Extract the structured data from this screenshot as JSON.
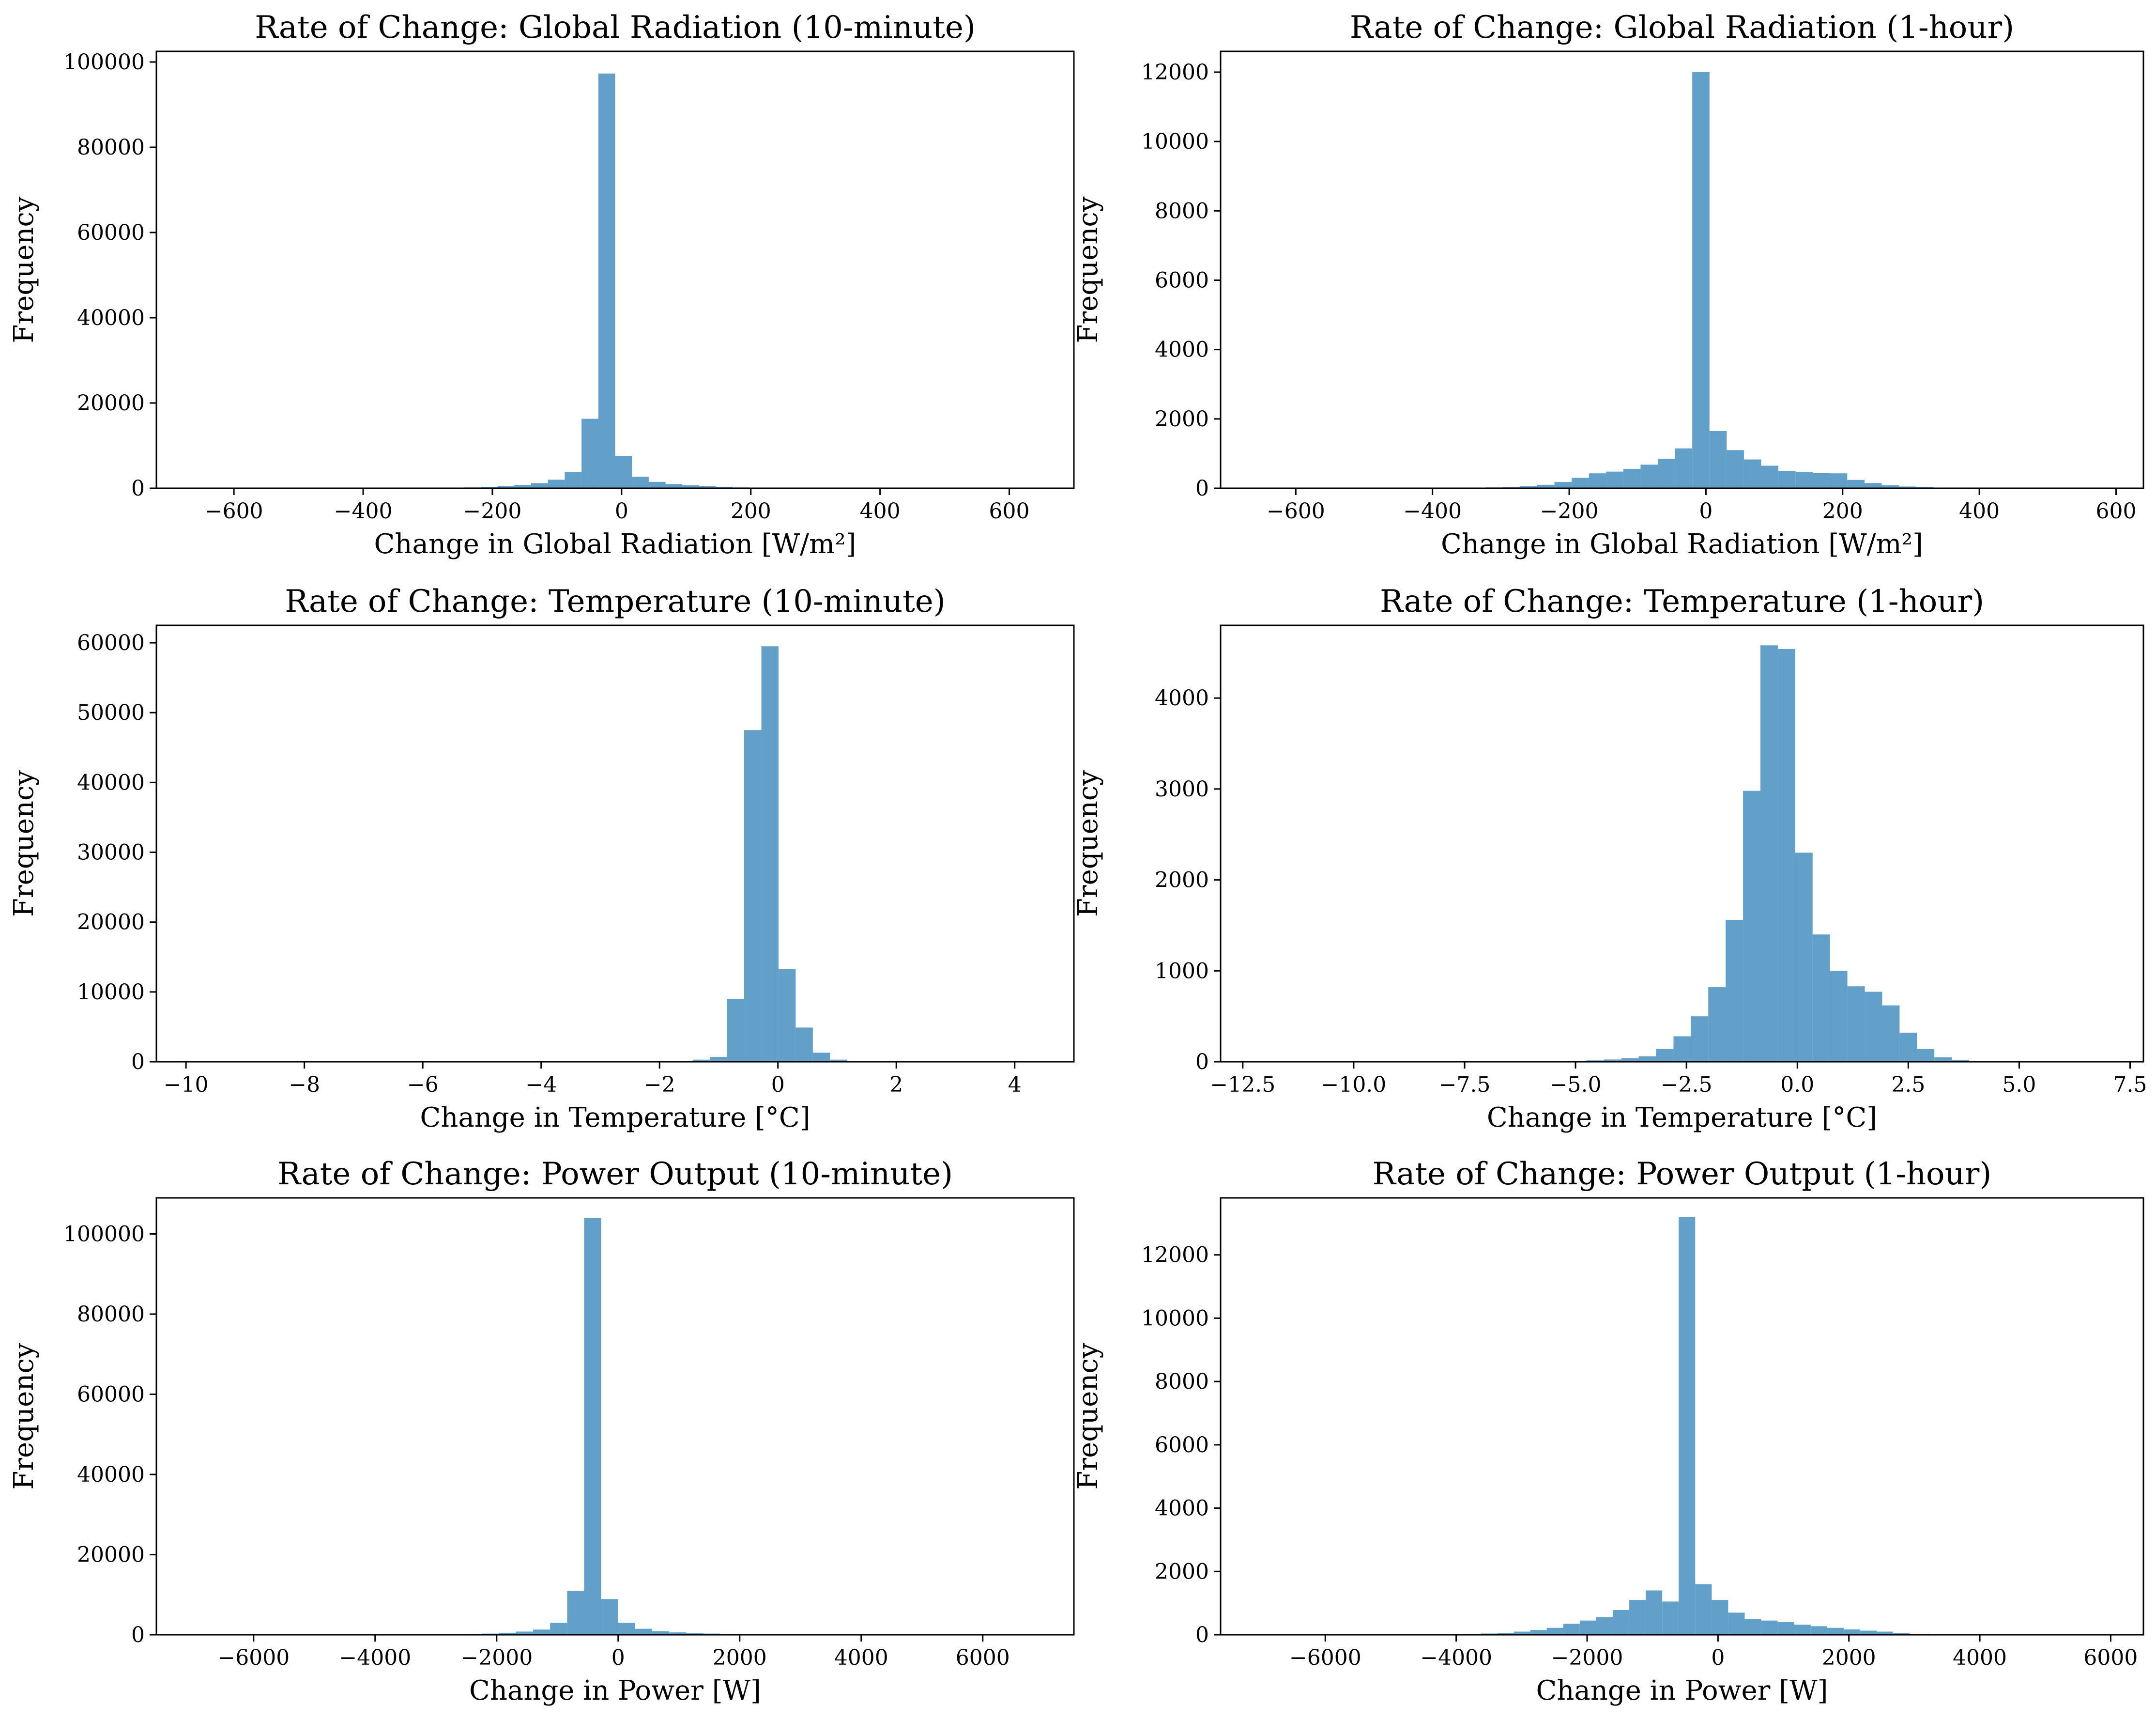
{
  "style": {
    "bar_color": "#1f77b4",
    "bar_opacity": 0.7,
    "background": "#ffffff"
  },
  "chart_data": [
    {
      "type": "bar",
      "title": "Rate of Change: Global Radiation (10-minute)",
      "xlabel": "Change in Global Radiation [W/m²]",
      "ylabel": "Frequency",
      "xlim": [
        -720,
        700
      ],
      "ylim": [
        0,
        102500
      ],
      "xticks": [
        -600,
        -400,
        -200,
        0,
        200,
        400,
        600
      ],
      "xtick_labels": [
        "−600",
        "−400",
        "−200",
        "0",
        "200",
        "400",
        "600"
      ],
      "yticks": [
        0,
        20000,
        40000,
        60000,
        80000,
        100000
      ],
      "ytick_labels": [
        "0",
        "20000",
        "40000",
        "60000",
        "80000",
        "100000"
      ],
      "bin_edges": [
        -660,
        -634,
        -608,
        -582,
        -556,
        -530,
        -504,
        -478,
        -452,
        -426,
        -400,
        -374,
        -348,
        -322,
        -296,
        -270,
        -244,
        -218,
        -192,
        -166,
        -140,
        -114,
        -88,
        -62,
        -36,
        -10,
        16,
        42,
        68,
        94,
        120,
        146,
        172,
        198,
        224,
        250,
        276,
        302,
        328,
        354,
        380,
        406,
        432,
        458,
        484,
        510,
        536,
        562,
        588,
        614,
        640
      ],
      "values": [
        5,
        5,
        5,
        5,
        5,
        5,
        5,
        5,
        5,
        10,
        10,
        20,
        30,
        50,
        80,
        120,
        200,
        300,
        500,
        800,
        1200,
        2000,
        3800,
        16300,
        97300,
        7600,
        2700,
        1500,
        1000,
        700,
        500,
        300,
        200,
        120,
        80,
        50,
        30,
        20,
        10,
        5,
        5,
        5,
        5,
        5,
        5,
        5,
        5,
        5,
        5,
        5
      ]
    },
    {
      "type": "bar",
      "title": "Rate of Change: Global Radiation (1-hour)",
      "xlabel": "Change in Global Radiation [W/m²]",
      "ylabel": "Frequency",
      "xlim": [
        -710,
        640
      ],
      "ylim": [
        0,
        12600
      ],
      "xticks": [
        -600,
        -400,
        -200,
        0,
        200,
        400,
        600
      ],
      "xtick_labels": [
        "−600",
        "−400",
        "−200",
        "0",
        "200",
        "400",
        "600"
      ],
      "yticks": [
        0,
        2000,
        4000,
        6000,
        8000,
        10000,
        12000
      ],
      "ytick_labels": [
        "0",
        "2000",
        "4000",
        "6000",
        "8000",
        "10000",
        "12000"
      ],
      "bin_edges": [
        -650,
        -624.8,
        -599.6,
        -574.4,
        -549.2,
        -524,
        -498.8,
        -473.6,
        -448.4,
        -423.2,
        -398,
        -372.8,
        -347.6,
        -322.4,
        -297.2,
        -272,
        -246.8,
        -221.6,
        -196.4,
        -171.2,
        -146,
        -120.8,
        -95.6,
        -70.4,
        -45.2,
        -20,
        5.2,
        30.4,
        55.6,
        80.8,
        106,
        131.2,
        156.4,
        181.6,
        206.8,
        232,
        257.2,
        282.4,
        307.6,
        332.8,
        358,
        383.2,
        408.4,
        433.6,
        458.8,
        484,
        509.2,
        534.4,
        559.6,
        584.8,
        610
      ],
      "values": [
        3,
        3,
        3,
        3,
        3,
        3,
        3,
        3,
        3,
        5,
        8,
        10,
        15,
        25,
        40,
        60,
        100,
        180,
        300,
        430,
        480,
        560,
        680,
        850,
        1150,
        12000,
        1650,
        1100,
        830,
        650,
        500,
        470,
        440,
        430,
        240,
        150,
        90,
        50,
        30,
        15,
        8,
        5,
        3,
        3,
        3,
        3,
        3,
        3,
        3,
        3
      ]
    },
    {
      "type": "bar",
      "title": "Rate of Change: Temperature (10-minute)",
      "xlabel": "Change in Temperature [°C]",
      "ylabel": "Frequency",
      "xlim": [
        -10.5,
        5.0
      ],
      "ylim": [
        0,
        62500
      ],
      "xticks": [
        -10,
        -8,
        -6,
        -4,
        -2,
        0,
        2,
        4
      ],
      "xtick_labels": [
        "−10",
        "−8",
        "−6",
        "−4",
        "−2",
        "0",
        "2",
        "4"
      ],
      "yticks": [
        0,
        10000,
        20000,
        30000,
        40000,
        50000,
        60000
      ],
      "ytick_labels": [
        "0",
        "10000",
        "20000",
        "30000",
        "40000",
        "50000",
        "60000"
      ],
      "bin_edges": [
        -9.85,
        -9.56,
        -9.27,
        -8.98,
        -8.69,
        -8.4,
        -8.11,
        -7.82,
        -7.53,
        -7.24,
        -6.95,
        -6.66,
        -6.37,
        -6.08,
        -5.79,
        -5.5,
        -5.21,
        -4.92,
        -4.63,
        -4.34,
        -4.05,
        -3.76,
        -3.47,
        -3.18,
        -2.89,
        -2.6,
        -2.31,
        -2.02,
        -1.73,
        -1.44,
        -1.15,
        -0.86,
        -0.57,
        -0.28,
        0.01,
        0.3,
        0.59,
        0.88,
        1.17,
        1.46,
        1.75,
        2.04,
        2.33,
        2.62,
        2.91,
        3.2,
        3.49,
        3.78,
        4.07,
        4.36,
        4.65
      ],
      "values": [
        3,
        3,
        3,
        3,
        3,
        3,
        3,
        3,
        3,
        3,
        3,
        3,
        3,
        3,
        3,
        3,
        3,
        3,
        3,
        3,
        3,
        3,
        3,
        3,
        5,
        10,
        30,
        80,
        100,
        300,
        700,
        9000,
        47500,
        59500,
        13300,
        4900,
        1300,
        300,
        80,
        30,
        10,
        5,
        3,
        3,
        3,
        3,
        3,
        3,
        3,
        3
      ]
    },
    {
      "type": "bar",
      "title": "Rate of Change: Temperature (1-hour)",
      "xlabel": "Change in Temperature [°C]",
      "ylabel": "Frequency",
      "xlim": [
        -13.0,
        7.8
      ],
      "ylim": [
        0,
        4800
      ],
      "xticks": [
        -12.5,
        -10.0,
        -7.5,
        -5.0,
        -2.5,
        0.0,
        2.5,
        5.0,
        7.5
      ],
      "xtick_labels": [
        "−12.5",
        "−10.0",
        "−7.5",
        "−5.0",
        "−2.5",
        "0.0",
        "2.5",
        "5.0",
        "7.5"
      ],
      "yticks": [
        0,
        1000,
        2000,
        3000,
        4000
      ],
      "ytick_labels": [
        "0",
        "1000",
        "2000",
        "3000",
        "4000"
      ],
      "bin_edges": [
        -12.2,
        -11.808,
        -11.416,
        -11.024,
        -10.632,
        -10.24,
        -9.848,
        -9.456,
        -9.064,
        -8.672,
        -8.28,
        -7.888,
        -7.496,
        -7.104,
        -6.712,
        -6.32,
        -5.928,
        -5.536,
        -5.144,
        -4.752,
        -4.36,
        -3.968,
        -3.576,
        -3.184,
        -2.792,
        -2.4,
        -2.008,
        -1.616,
        -1.224,
        -0.832,
        -0.44,
        -0.048,
        0.344,
        0.736,
        1.128,
        1.52,
        1.912,
        2.304,
        2.696,
        3.088,
        3.48,
        3.872,
        4.264,
        4.656,
        5.048,
        5.44,
        5.832,
        6.224,
        6.616,
        7.008,
        7.4
      ],
      "values": [
        3,
        3,
        3,
        3,
        3,
        3,
        3,
        3,
        3,
        3,
        3,
        3,
        3,
        3,
        3,
        3,
        3,
        5,
        8,
        15,
        25,
        40,
        60,
        140,
        280,
        500,
        820,
        1560,
        2980,
        4580,
        4540,
        2300,
        1400,
        1000,
        830,
        770,
        620,
        320,
        140,
        50,
        20,
        8,
        5,
        3,
        3,
        3,
        3,
        3,
        3,
        3
      ]
    },
    {
      "type": "bar",
      "title": "Rate of Change: Power Output (10-minute)",
      "xlabel": "Change in Power [W]",
      "ylabel": "Frequency",
      "xlim": [
        -7600,
        7500
      ],
      "ylim": [
        0,
        109000
      ],
      "xticks": [
        -6000,
        -4000,
        -2000,
        0,
        2000,
        4000,
        6000
      ],
      "xtick_labels": [
        "−6000",
        "−4000",
        "−2000",
        "0",
        "2000",
        "4000",
        "6000"
      ],
      "yticks": [
        0,
        20000,
        40000,
        60000,
        80000,
        100000
      ],
      "ytick_labels": [
        "0",
        "20000",
        "40000",
        "60000",
        "80000",
        "100000"
      ],
      "bin_edges": [
        -7000,
        -6720,
        -6440,
        -6160,
        -5880,
        -5600,
        -5320,
        -5040,
        -4760,
        -4480,
        -4200,
        -3920,
        -3640,
        -3360,
        -3080,
        -2800,
        -2520,
        -2240,
        -1960,
        -1680,
        -1400,
        -1120,
        -840,
        -560,
        -280,
        0,
        280,
        560,
        840,
        1120,
        1400,
        1680,
        1960,
        2240,
        2520,
        2800,
        3080,
        3360,
        3640,
        3920,
        4200,
        4480,
        4760,
        5040,
        5320,
        5600,
        5880,
        6160,
        6440,
        6720,
        7000
      ],
      "values": [
        5,
        5,
        5,
        5,
        5,
        5,
        5,
        5,
        5,
        5,
        5,
        10,
        20,
        40,
        60,
        100,
        200,
        300,
        500,
        800,
        1300,
        3000,
        10900,
        104000,
        8900,
        3000,
        1500,
        900,
        600,
        400,
        300,
        200,
        100,
        60,
        40,
        20,
        10,
        5,
        5,
        5,
        5,
        5,
        5,
        5,
        5,
        5,
        5,
        5,
        5,
        5
      ]
    },
    {
      "type": "bar",
      "title": "Rate of Change: Power Output (1-hour)",
      "xlabel": "Change in Power [W]",
      "ylabel": "Frequency",
      "xlim": [
        -7600,
        6500
      ],
      "ylim": [
        0,
        13800
      ],
      "xticks": [
        -6000,
        -4000,
        -2000,
        0,
        2000,
        4000,
        6000
      ],
      "xtick_labels": [
        "−6000",
        "−4000",
        "−2000",
        "0",
        "2000",
        "4000",
        "6000"
      ],
      "yticks": [
        0,
        2000,
        4000,
        6000,
        8000,
        10000,
        12000
      ],
      "ytick_labels": [
        "0",
        "2000",
        "4000",
        "6000",
        "8000",
        "10000",
        "12000"
      ],
      "bin_edges": [
        -6900,
        -6648,
        -6396,
        -6144,
        -5892,
        -5640,
        -5388,
        -5136,
        -4884,
        -4632,
        -4380,
        -4128,
        -3876,
        -3624,
        -3372,
        -3120,
        -2868,
        -2616,
        -2364,
        -2112,
        -1860,
        -1608,
        -1356,
        -1104,
        -852,
        -600,
        -348,
        -96,
        156,
        408,
        660,
        912,
        1164,
        1416,
        1668,
        1920,
        2172,
        2424,
        2676,
        2928,
        3180,
        3432,
        3684,
        3936,
        4188,
        4440,
        4692,
        4944,
        5196,
        5448,
        5700
      ],
      "values": [
        3,
        3,
        3,
        3,
        3,
        3,
        3,
        3,
        3,
        5,
        10,
        15,
        25,
        40,
        60,
        100,
        150,
        220,
        350,
        450,
        560,
        780,
        1100,
        1400,
        1050,
        13200,
        1600,
        1100,
        700,
        500,
        450,
        400,
        320,
        270,
        220,
        170,
        130,
        100,
        60,
        30,
        15,
        8,
        5,
        3,
        3,
        3,
        3,
        3,
        3,
        3
      ]
    }
  ]
}
